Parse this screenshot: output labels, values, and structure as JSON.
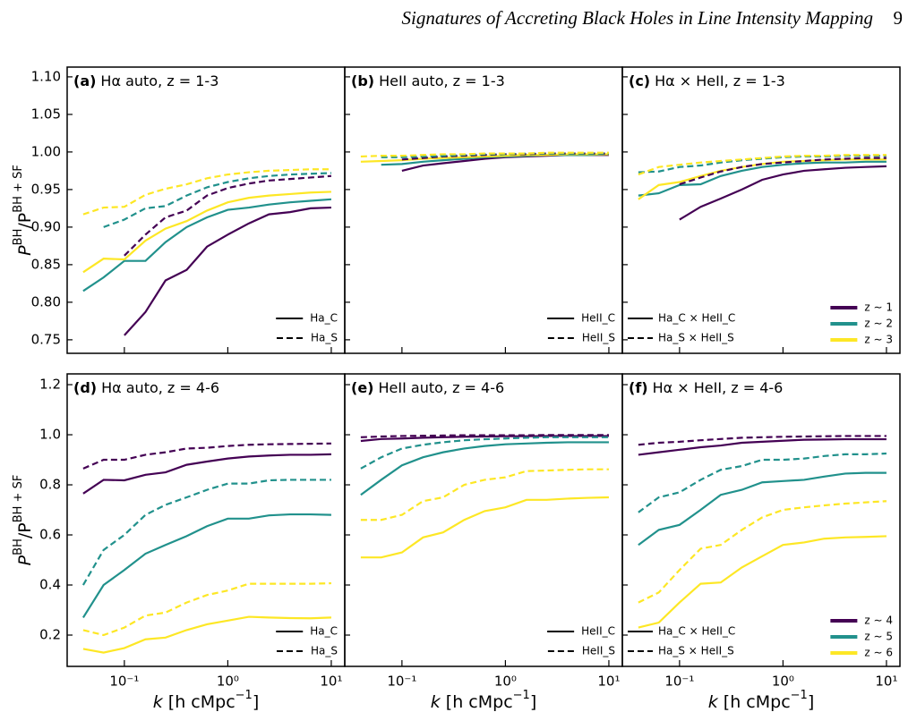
{
  "page_header": {
    "title": "Signatures of Accreting Black Holes in Line Intensity Mapping",
    "page": "9"
  },
  "chart_data": [
    {
      "type": "line",
      "label": "(a)",
      "title": "Hα auto, z = 1-3",
      "ylabel": [
        "P",
        "BH",
        "/P",
        "BH + SF"
      ],
      "x": [
        0.04,
        0.063,
        0.1,
        0.16,
        0.25,
        0.4,
        0.63,
        1,
        1.6,
        2.5,
        4,
        6.3,
        10
      ],
      "xlim": [
        0.028,
        13.5
      ],
      "xscale": "log",
      "ylim": [
        0.732,
        1.113
      ],
      "yticks": [
        {
          "value": 0.75,
          "label": "0.75"
        },
        {
          "value": 0.8,
          "label": "0.80"
        },
        {
          "value": 0.85,
          "label": "0.85"
        },
        {
          "value": 0.9,
          "label": "0.90"
        },
        {
          "value": 0.95,
          "label": "0.95"
        },
        {
          "value": 1,
          "label": "1.00"
        },
        {
          "value": 1.05,
          "label": "1.05"
        },
        {
          "value": 1.1,
          "label": "1.10"
        }
      ],
      "legend": [
        {
          "name": "Ha_C",
          "dash": "solid"
        },
        {
          "name": "Ha_S",
          "dash": "dashed"
        }
      ],
      "legend_loc": "lower right",
      "series": [
        {
          "color": "#440154",
          "dash": "solid",
          "values": [
            null,
            null,
            0.756,
            0.787,
            0.829,
            0.843,
            0.874,
            0.89,
            0.905,
            0.917,
            0.92,
            0.925,
            0.926
          ]
        },
        {
          "color": "#21918c",
          "dash": "solid",
          "values": [
            0.815,
            0.833,
            0.855,
            0.855,
            0.88,
            0.9,
            0.913,
            0.923,
            0.926,
            0.93,
            0.933,
            0.935,
            0.937
          ]
        },
        {
          "color": "#fde725",
          "dash": "solid",
          "values": [
            0.84,
            0.858,
            0.857,
            0.882,
            0.898,
            0.908,
            0.922,
            0.933,
            0.939,
            0.942,
            0.944,
            0.946,
            0.947
          ]
        },
        {
          "color": "#440154",
          "dash": "dashed",
          "values": [
            null,
            null,
            0.862,
            0.89,
            0.913,
            0.922,
            0.942,
            0.952,
            0.958,
            0.962,
            0.964,
            0.966,
            0.968
          ]
        },
        {
          "color": "#21918c",
          "dash": "dashed",
          "values": [
            null,
            0.9,
            0.91,
            0.925,
            0.928,
            0.942,
            0.953,
            0.96,
            0.965,
            0.968,
            0.97,
            0.971,
            0.972
          ]
        },
        {
          "color": "#fde725",
          "dash": "dashed",
          "values": [
            0.917,
            0.926,
            0.927,
            0.943,
            0.951,
            0.957,
            0.965,
            0.97,
            0.973,
            0.975,
            0.976,
            0.977,
            0.977
          ]
        }
      ]
    },
    {
      "type": "line",
      "label": "(b)",
      "title": "HeII auto, z = 1-3",
      "x": [
        0.04,
        0.063,
        0.1,
        0.16,
        0.25,
        0.4,
        0.63,
        1,
        1.6,
        2.5,
        4,
        6.3,
        10
      ],
      "xlim": [
        0.028,
        13.5
      ],
      "xscale": "log",
      "ylim": [
        0.732,
        1.113
      ],
      "legend": [
        {
          "name": "HeII_C",
          "dash": "solid"
        },
        {
          "name": "HeII_S",
          "dash": "dashed"
        }
      ],
      "legend_loc": "lower right",
      "series": [
        {
          "color": "#440154",
          "dash": "solid",
          "values": [
            null,
            null,
            0.975,
            0.982,
            0.985,
            0.988,
            0.991,
            0.993,
            0.994,
            0.995,
            0.996,
            0.996,
            0.996
          ]
        },
        {
          "color": "#21918c",
          "dash": "solid",
          "values": [
            null,
            0.983,
            0.984,
            0.987,
            0.989,
            0.991,
            0.993,
            0.994,
            0.995,
            0.996,
            0.996,
            0.996,
            0.997
          ]
        },
        {
          "color": "#fde725",
          "dash": "solid",
          "values": [
            0.987,
            0.988,
            0.989,
            0.991,
            0.992,
            0.993,
            0.994,
            0.995,
            0.996,
            0.996,
            0.997,
            0.997,
            0.997
          ]
        },
        {
          "color": "#440154",
          "dash": "dashed",
          "values": [
            null,
            null,
            0.99,
            0.992,
            0.994,
            0.995,
            0.996,
            0.997,
            0.997,
            0.998,
            0.998,
            0.998,
            0.998
          ]
        },
        {
          "color": "#21918c",
          "dash": "dashed",
          "values": [
            null,
            0.993,
            0.993,
            0.994,
            0.995,
            0.996,
            0.997,
            0.997,
            0.998,
            0.998,
            0.998,
            0.998,
            0.998
          ]
        },
        {
          "color": "#fde725",
          "dash": "dashed",
          "values": [
            0.994,
            0.995,
            0.995,
            0.996,
            0.997,
            0.997,
            0.998,
            0.998,
            0.998,
            0.999,
            0.999,
            0.999,
            0.999
          ]
        }
      ]
    },
    {
      "type": "line",
      "label": "(c)",
      "title": "Hα × HeII, z = 1-3",
      "x": [
        0.04,
        0.063,
        0.1,
        0.16,
        0.25,
        0.4,
        0.63,
        1,
        1.6,
        2.5,
        4,
        6.3,
        10
      ],
      "xlim": [
        0.028,
        13.5
      ],
      "xscale": "log",
      "ylim": [
        0.732,
        1.113
      ],
      "legend": [
        {
          "name": "Ha_C × HeII_C",
          "dash": "solid"
        },
        {
          "name": "Ha_S × HeII_S",
          "dash": "dashed"
        }
      ],
      "legend_loc": "lower left",
      "color_legend": [
        {
          "name": "z ∼ 1",
          "color": "#440154"
        },
        {
          "name": "z ∼ 2",
          "color": "#21918c"
        },
        {
          "name": "z ∼ 3",
          "color": "#fde725"
        }
      ],
      "color_legend_loc": "lower right",
      "series": [
        {
          "color": "#440154",
          "dash": "solid",
          "values": [
            null,
            null,
            0.91,
            0.927,
            0.938,
            0.95,
            0.963,
            0.97,
            0.975,
            0.977,
            0.979,
            0.98,
            0.981
          ]
        },
        {
          "color": "#21918c",
          "dash": "solid",
          "values": [
            0.942,
            0.945,
            0.956,
            0.957,
            0.968,
            0.975,
            0.98,
            0.983,
            0.985,
            0.986,
            0.986,
            0.987,
            0.987
          ]
        },
        {
          "color": "#fde725",
          "dash": "solid",
          "values": [
            0.937,
            0.956,
            0.96,
            0.968,
            0.975,
            0.98,
            0.984,
            0.987,
            0.988,
            0.989,
            0.99,
            0.99,
            0.99
          ]
        },
        {
          "color": "#440154",
          "dash": "dashed",
          "values": [
            null,
            null,
            0.957,
            0.966,
            0.974,
            0.98,
            0.984,
            0.986,
            0.988,
            0.99,
            0.991,
            0.992,
            0.992
          ]
        },
        {
          "color": "#21918c",
          "dash": "dashed",
          "values": [
            0.973,
            0.974,
            0.98,
            0.982,
            0.986,
            0.989,
            0.991,
            0.993,
            0.994,
            0.994,
            0.995,
            0.995,
            0.995
          ]
        },
        {
          "color": "#fde725",
          "dash": "dashed",
          "values": [
            0.97,
            0.98,
            0.983,
            0.986,
            0.988,
            0.99,
            0.992,
            0.994,
            0.995,
            0.995,
            0.996,
            0.996,
            0.996
          ]
        }
      ]
    },
    {
      "type": "line",
      "label": "(d)",
      "title": "Hα auto, z = 4-6",
      "ylabel": [
        "P",
        "BH",
        "/P",
        "BH + SF"
      ],
      "xlabel": [
        "k",
        " [h cMpc",
        "−1",
        "]"
      ],
      "x": [
        0.04,
        0.063,
        0.1,
        0.16,
        0.25,
        0.4,
        0.63,
        1,
        1.6,
        2.5,
        4,
        6.3,
        10
      ],
      "xlim": [
        0.028,
        13.5
      ],
      "xscale": "log",
      "xticks": [
        {
          "value": 0.1,
          "label": "10⁻¹"
        },
        {
          "value": 1,
          "label": "10⁰"
        },
        {
          "value": 10,
          "label": "10¹"
        }
      ],
      "ylim": [
        0.075,
        1.243
      ],
      "yticks": [
        0.2,
        0.4,
        0.6,
        0.8,
        {
          "value": 1,
          "label": "1.0"
        },
        1.2
      ],
      "legend": [
        {
          "name": "Ha_C",
          "dash": "solid"
        },
        {
          "name": "Ha_S",
          "dash": "dashed"
        }
      ],
      "legend_loc": "lower right",
      "series": [
        {
          "color": "#440154",
          "dash": "solid",
          "values": [
            0.765,
            0.82,
            0.818,
            0.84,
            0.85,
            0.88,
            0.893,
            0.905,
            0.913,
            0.917,
            0.92,
            0.92,
            0.922
          ]
        },
        {
          "color": "#21918c",
          "dash": "solid",
          "values": [
            0.27,
            0.4,
            0.46,
            0.525,
            0.56,
            0.595,
            0.635,
            0.665,
            0.665,
            0.678,
            0.682,
            0.682,
            0.68
          ]
        },
        {
          "color": "#fde725",
          "dash": "solid",
          "values": [
            0.145,
            0.13,
            0.148,
            0.183,
            0.19,
            0.22,
            0.243,
            0.258,
            0.273,
            0.27,
            0.268,
            0.267,
            0.27
          ]
        },
        {
          "color": "#440154",
          "dash": "dashed",
          "values": [
            0.865,
            0.9,
            0.9,
            0.92,
            0.93,
            0.945,
            0.948,
            0.955,
            0.96,
            0.962,
            0.963,
            0.964,
            0.965
          ]
        },
        {
          "color": "#21918c",
          "dash": "dashed",
          "values": [
            0.4,
            0.54,
            0.6,
            0.68,
            0.72,
            0.75,
            0.78,
            0.805,
            0.805,
            0.818,
            0.82,
            0.82,
            0.82
          ]
        },
        {
          "color": "#fde725",
          "dash": "dashed",
          "values": [
            0.22,
            0.2,
            0.23,
            0.278,
            0.29,
            0.33,
            0.36,
            0.378,
            0.405,
            0.405,
            0.405,
            0.405,
            0.407
          ]
        }
      ]
    },
    {
      "type": "line",
      "label": "(e)",
      "title": "HeII auto, z = 4-6",
      "xlabel": [
        "k",
        " [h cMpc",
        "−1",
        "]"
      ],
      "x": [
        0.04,
        0.063,
        0.1,
        0.16,
        0.25,
        0.4,
        0.63,
        1,
        1.6,
        2.5,
        4,
        6.3,
        10
      ],
      "xlim": [
        0.028,
        13.5
      ],
      "xscale": "log",
      "xticks": [
        {
          "value": 0.1,
          "label": "10⁻¹"
        },
        {
          "value": 1,
          "label": "10⁰"
        },
        {
          "value": 10,
          "label": "10¹"
        }
      ],
      "ylim": [
        0.075,
        1.243
      ],
      "legend": [
        {
          "name": "HeII_C",
          "dash": "solid"
        },
        {
          "name": "HeII_S",
          "dash": "dashed"
        }
      ],
      "legend_loc": "lower right",
      "series": [
        {
          "color": "#440154",
          "dash": "solid",
          "values": [
            0.975,
            0.983,
            0.985,
            0.988,
            0.99,
            0.992,
            0.993,
            0.994,
            0.994,
            0.995,
            0.995,
            0.995,
            0.995
          ]
        },
        {
          "color": "#21918c",
          "dash": "solid",
          "values": [
            0.76,
            0.82,
            0.878,
            0.91,
            0.93,
            0.945,
            0.955,
            0.962,
            0.965,
            0.968,
            0.97,
            0.97,
            0.97
          ]
        },
        {
          "color": "#fde725",
          "dash": "solid",
          "values": [
            0.51,
            0.51,
            0.53,
            0.59,
            0.61,
            0.66,
            0.695,
            0.71,
            0.74,
            0.74,
            0.745,
            0.748,
            0.75
          ]
        },
        {
          "color": "#440154",
          "dash": "dashed",
          "values": [
            0.99,
            0.993,
            0.995,
            0.996,
            0.997,
            0.998,
            0.998,
            0.998,
            0.998,
            0.999,
            0.999,
            0.999,
            0.999
          ]
        },
        {
          "color": "#21918c",
          "dash": "dashed",
          "values": [
            0.865,
            0.91,
            0.945,
            0.96,
            0.97,
            0.978,
            0.982,
            0.985,
            0.988,
            0.99,
            0.99,
            0.99,
            0.99
          ]
        },
        {
          "color": "#fde725",
          "dash": "dashed",
          "values": [
            0.66,
            0.66,
            0.68,
            0.735,
            0.75,
            0.8,
            0.82,
            0.83,
            0.855,
            0.857,
            0.86,
            0.862,
            0.862
          ]
        }
      ]
    },
    {
      "type": "line",
      "label": "(f)",
      "title": "Hα × HeII, z = 4-6",
      "xlabel": [
        "k",
        " [h cMpc",
        "−1",
        "]"
      ],
      "x": [
        0.04,
        0.063,
        0.1,
        0.16,
        0.25,
        0.4,
        0.63,
        1,
        1.6,
        2.5,
        4,
        6.3,
        10
      ],
      "xlim": [
        0.028,
        13.5
      ],
      "xscale": "log",
      "xticks": [
        {
          "value": 0.1,
          "label": "10⁻¹"
        },
        {
          "value": 1,
          "label": "10⁰"
        },
        {
          "value": 10,
          "label": "10¹"
        }
      ],
      "ylim": [
        0.075,
        1.243
      ],
      "legend": [
        {
          "name": "Ha_C × HeII_C",
          "dash": "solid"
        },
        {
          "name": "Ha_S × HeII_S",
          "dash": "dashed"
        }
      ],
      "legend_loc": "lower left",
      "color_legend": [
        {
          "name": "z ∼ 4",
          "color": "#440154"
        },
        {
          "name": "z ∼ 5",
          "color": "#21918c"
        },
        {
          "name": "z ∼ 6",
          "color": "#fde725"
        }
      ],
      "color_legend_loc": "lower right",
      "series": [
        {
          "color": "#440154",
          "dash": "solid",
          "values": [
            0.92,
            0.93,
            0.94,
            0.95,
            0.957,
            0.968,
            0.972,
            0.976,
            0.98,
            0.981,
            0.982,
            0.982,
            0.982
          ]
        },
        {
          "color": "#21918c",
          "dash": "solid",
          "values": [
            0.56,
            0.62,
            0.64,
            0.7,
            0.76,
            0.78,
            0.81,
            0.815,
            0.82,
            0.833,
            0.845,
            0.848,
            0.848
          ]
        },
        {
          "color": "#fde725",
          "dash": "solid",
          "values": [
            0.23,
            0.25,
            0.33,
            0.405,
            0.41,
            0.47,
            0.515,
            0.56,
            0.57,
            0.585,
            0.59,
            0.592,
            0.595
          ]
        },
        {
          "color": "#440154",
          "dash": "dashed",
          "values": [
            0.96,
            0.968,
            0.972,
            0.978,
            0.983,
            0.988,
            0.99,
            0.992,
            0.993,
            0.994,
            0.995,
            0.995,
            0.995
          ]
        },
        {
          "color": "#21918c",
          "dash": "dashed",
          "values": [
            0.69,
            0.75,
            0.77,
            0.82,
            0.86,
            0.875,
            0.9,
            0.9,
            0.905,
            0.915,
            0.922,
            0.922,
            0.925
          ]
        },
        {
          "color": "#fde725",
          "dash": "dashed",
          "values": [
            0.33,
            0.37,
            0.46,
            0.545,
            0.56,
            0.62,
            0.67,
            0.7,
            0.71,
            0.718,
            0.725,
            0.73,
            0.735
          ]
        }
      ]
    }
  ]
}
